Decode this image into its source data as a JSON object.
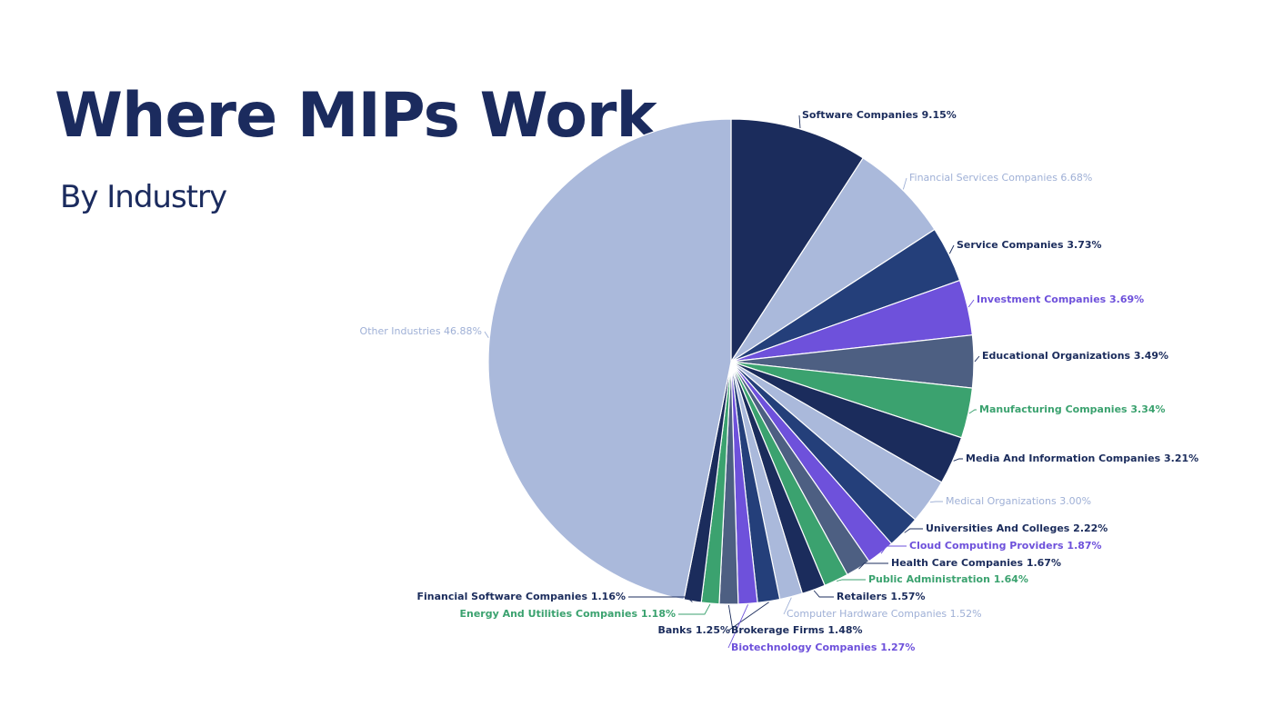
{
  "title": "Where MIPs Work",
  "subtitle": "By Industry",
  "colors": {
    "navy": "#1b2c5c",
    "light_blue": "#aab9db",
    "dark_blue": "#243f7a",
    "purple": "#6e51db",
    "slate": "#4d5f82",
    "green": "#3ba26f",
    "label_light": "#9fb0d6"
  },
  "chart_data": {
    "type": "pie",
    "title": "Where MIPs Work",
    "subtitle": "By Industry",
    "start_angle_deg": 0,
    "direction": "clockwise",
    "slices": [
      {
        "label": "Software Companies",
        "value": 9.15,
        "display": "Software Companies 9.15%",
        "color": "#1b2c5c",
        "label_color": "#1b2c5c"
      },
      {
        "label": "Financial Services Companies",
        "value": 6.68,
        "display": "Financial Services Companies 6.68%",
        "color": "#aab9db",
        "label_color": "#9fb0d6"
      },
      {
        "label": "Service Companies",
        "value": 3.73,
        "display": "Service Companies 3.73%",
        "color": "#243f7a",
        "label_color": "#1b2c5c"
      },
      {
        "label": "Investment Companies",
        "value": 3.69,
        "display": "Investment Companies 3.69%",
        "color": "#6e51db",
        "label_color": "#6e51db"
      },
      {
        "label": "Educational Organizations",
        "value": 3.49,
        "display": "Educational Organizations 3.49%",
        "color": "#4d5f82",
        "label_color": "#1b2c5c"
      },
      {
        "label": "Manufacturing Companies",
        "value": 3.34,
        "display": "Manufacturing Companies 3.34%",
        "color": "#3ba26f",
        "label_color": "#3ba26f"
      },
      {
        "label": "Media And Information Companies",
        "value": 3.21,
        "display": "Media And Information Companies 3.21%",
        "color": "#1b2c5c",
        "label_color": "#1b2c5c"
      },
      {
        "label": "Medical Organizations",
        "value": 3.0,
        "display": "Medical Organizations 3.00%",
        "color": "#aab9db",
        "label_color": "#9fb0d6"
      },
      {
        "label": "Universities And Colleges",
        "value": 2.22,
        "display": "Universities And Colleges 2.22%",
        "color": "#243f7a",
        "label_color": "#1b2c5c"
      },
      {
        "label": "Cloud Computing Providers",
        "value": 1.87,
        "display": "Cloud Computing Providers 1.87%",
        "color": "#6e51db",
        "label_color": "#6e51db"
      },
      {
        "label": "Health Care Companies",
        "value": 1.67,
        "display": "Health Care Companies 1.67%",
        "color": "#4d5f82",
        "label_color": "#1b2c5c"
      },
      {
        "label": "Public Administration",
        "value": 1.64,
        "display": "Public Administration 1.64%",
        "color": "#3ba26f",
        "label_color": "#3ba26f"
      },
      {
        "label": "Retailers",
        "value": 1.57,
        "display": "Retailers 1.57%",
        "color": "#1b2c5c",
        "label_color": "#1b2c5c"
      },
      {
        "label": "Computer Hardware Companies",
        "value": 1.52,
        "display": "Computer Hardware Companies 1.52%",
        "color": "#aab9db",
        "label_color": "#9fb0d6"
      },
      {
        "label": "Brokerage Firms",
        "value": 1.48,
        "display": "Brokerage Firms 1.48%",
        "color": "#243f7a",
        "label_color": "#1b2c5c"
      },
      {
        "label": "Biotechnology Companies",
        "value": 1.27,
        "display": "Biotechnology Companies 1.27%",
        "color": "#6e51db",
        "label_color": "#6e51db"
      },
      {
        "label": "Banks",
        "value": 1.25,
        "display": "Banks 1.25%",
        "color": "#4d5f82",
        "label_color": "#1b2c5c"
      },
      {
        "label": "Energy And Utilities Companies",
        "value": 1.18,
        "display": "Energy And Utilities Companies 1.18%",
        "color": "#3ba26f",
        "label_color": "#3ba26f"
      },
      {
        "label": "Financial Software Companies",
        "value": 1.16,
        "display": "Financial Software Companies 1.16%",
        "color": "#1b2c5c",
        "label_color": "#1b2c5c"
      },
      {
        "label": "Other Industries",
        "value": 46.88,
        "display": "Other Industries 46.88%",
        "color": "#aab9db",
        "label_color": "#9fb0d6"
      }
    ]
  }
}
